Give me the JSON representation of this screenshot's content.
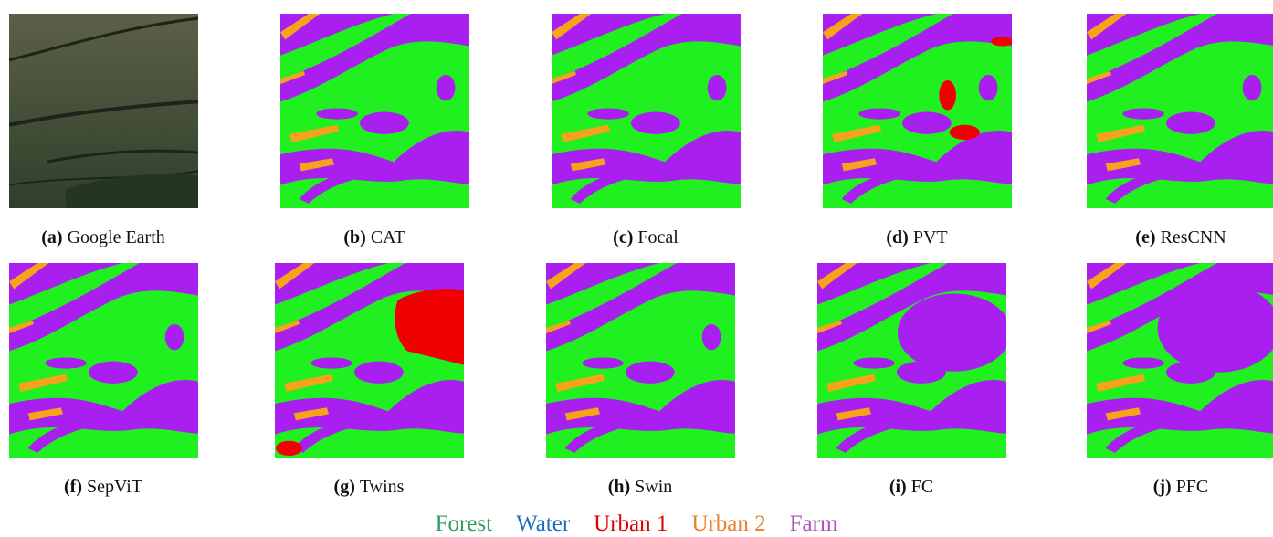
{
  "panels": [
    {
      "letter": "(a)",
      "label": "Google Earth"
    },
    {
      "letter": "(b)",
      "label": "CAT"
    },
    {
      "letter": "(c)",
      "label": "Focal"
    },
    {
      "letter": "(d)",
      "label": "PVT"
    },
    {
      "letter": "(e)",
      "label": "ResCNN"
    },
    {
      "letter": "(f)",
      "label": "SepViT"
    },
    {
      "letter": "(g)",
      "label": "Twins"
    },
    {
      "letter": "(h)",
      "label": "Swin"
    },
    {
      "letter": "(i)",
      "label": "FC"
    },
    {
      "letter": "(j)",
      "label": "PFC"
    }
  ],
  "legend": [
    {
      "label": "Forest",
      "color": "#2e9b5f"
    },
    {
      "label": "Water",
      "color": "#1f6fc0"
    },
    {
      "label": "Urban 1",
      "color": "#e00000"
    },
    {
      "label": "Urban 2",
      "color": "#e8822a"
    },
    {
      "label": "Farm",
      "color": "#b04fb8"
    }
  ]
}
